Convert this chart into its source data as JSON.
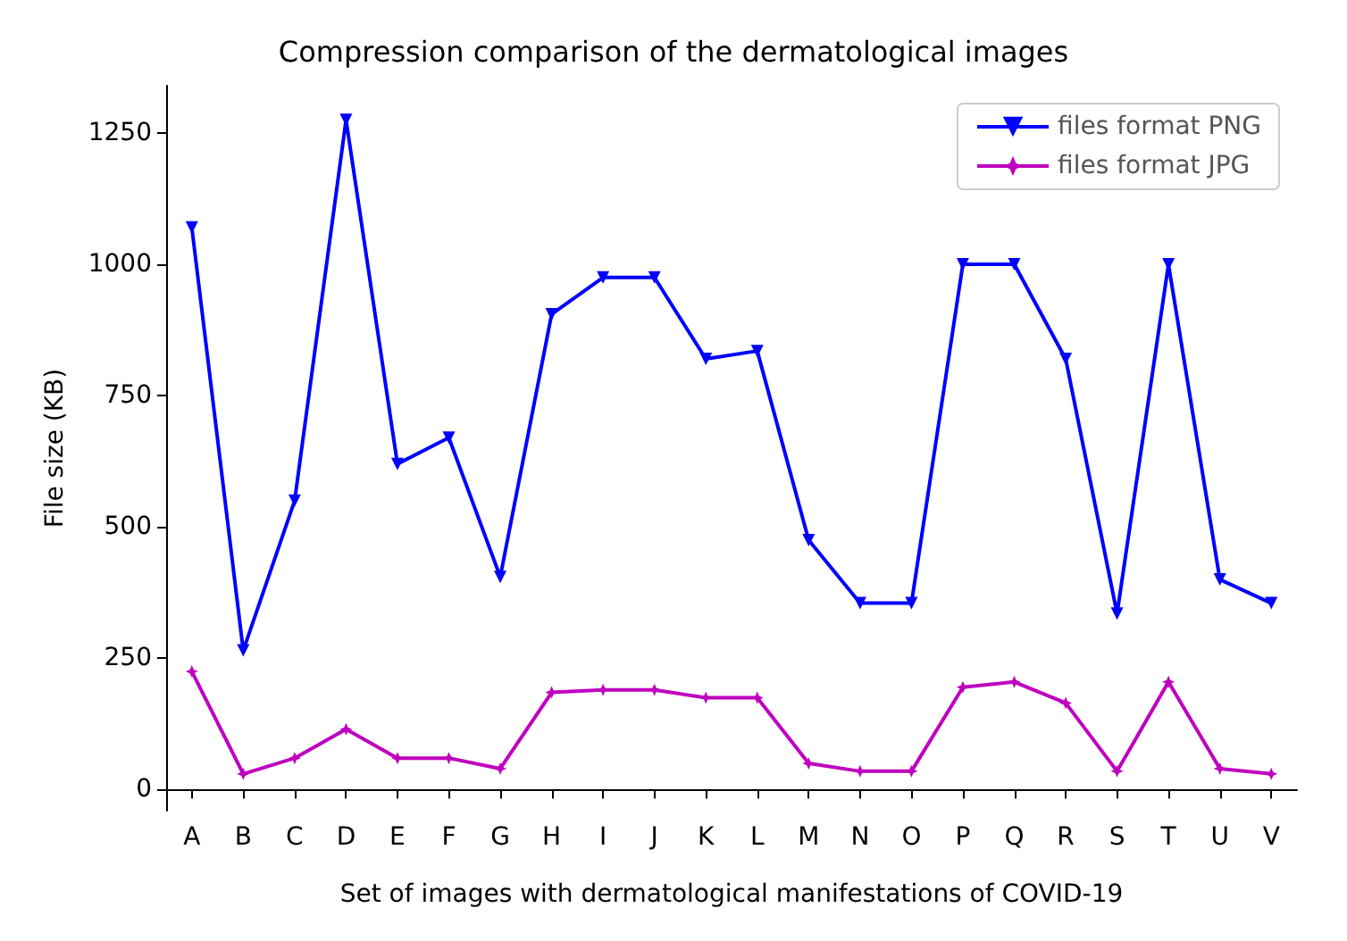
{
  "chart_data": {
    "type": "line",
    "title": "Compression comparison of the dermatological images",
    "xlabel": "Set of images with dermatological manifestations of COVID-19",
    "ylabel": "File size (KB)",
    "categories": [
      "A",
      "B",
      "C",
      "D",
      "E",
      "F",
      "G",
      "H",
      "I",
      "J",
      "K",
      "L",
      "M",
      "N",
      "O",
      "P",
      "Q",
      "R",
      "S",
      "T",
      "U",
      "V"
    ],
    "series": [
      {
        "name": "files format PNG",
        "color": "#0000ff",
        "marker": "triangle",
        "values": [
          1070,
          265,
          550,
          1275,
          620,
          670,
          405,
          905,
          975,
          975,
          820,
          835,
          475,
          355,
          355,
          1000,
          1000,
          820,
          335,
          1000,
          400,
          355
        ]
      },
      {
        "name": "files format JPG",
        "color": "#bf00bf",
        "marker": "star",
        "values": [
          225,
          30,
          60,
          115,
          60,
          60,
          40,
          185,
          190,
          190,
          175,
          175,
          50,
          35,
          35,
          195,
          205,
          165,
          35,
          205,
          40,
          30
        ]
      }
    ],
    "ylim": [
      -40,
      1340
    ],
    "yticks": [
      0,
      250,
      500,
      750,
      1000,
      1250
    ],
    "grid": false,
    "legend": "top right"
  }
}
